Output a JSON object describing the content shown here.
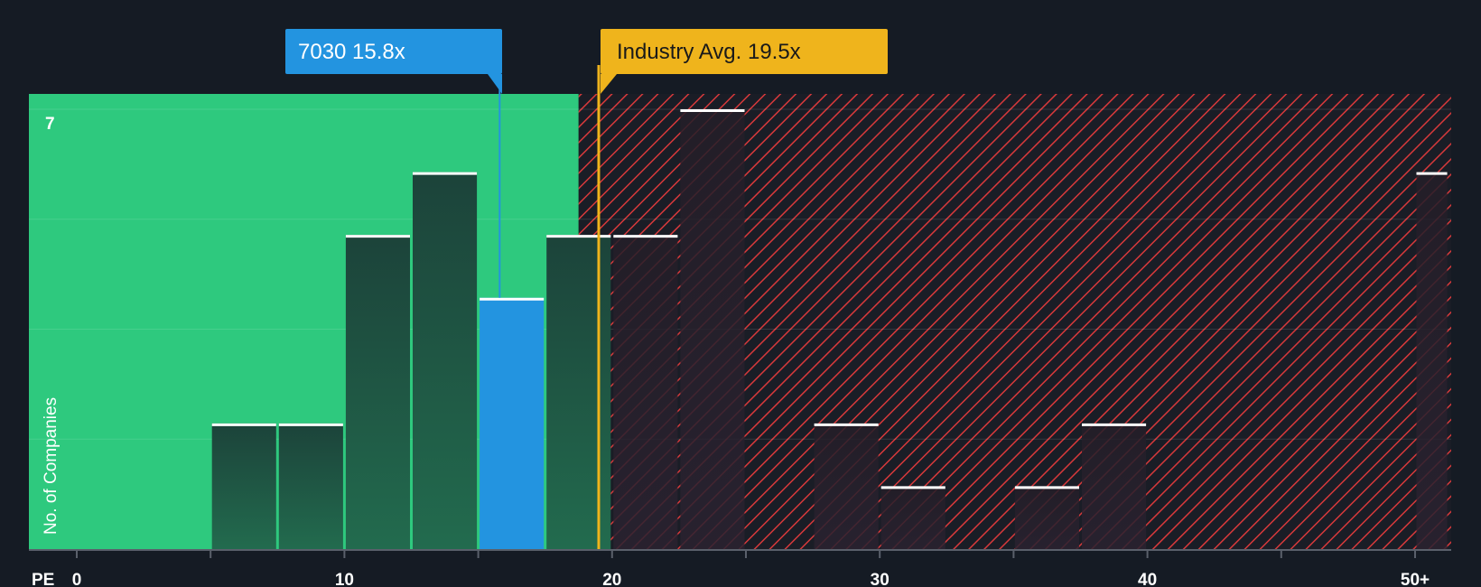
{
  "chart_data": {
    "type": "bar",
    "title": "",
    "xlabel": "PE",
    "ylabel": "No. of Companies",
    "xlim": [
      0,
      51.25
    ],
    "ylim": [
      0,
      7
    ],
    "y_max_label": "7",
    "x_ticks": [
      {
        "value": 0,
        "label": "0"
      },
      {
        "value": 10,
        "label": "10"
      },
      {
        "value": 20,
        "label": "20"
      },
      {
        "value": 30,
        "label": "30"
      },
      {
        "value": 40,
        "label": "40"
      },
      {
        "value": 50,
        "label": "50+"
      }
    ],
    "bins": [
      {
        "x0": 5.0,
        "x1": 7.5,
        "value": 2
      },
      {
        "x0": 7.5,
        "x1": 10.0,
        "value": 2
      },
      {
        "x0": 10.0,
        "x1": 12.5,
        "value": 5
      },
      {
        "x0": 12.5,
        "x1": 15.0,
        "value": 6
      },
      {
        "x0": 15.0,
        "x1": 17.5,
        "value": 4,
        "highlight": true
      },
      {
        "x0": 17.5,
        "x1": 20.0,
        "value": 5
      },
      {
        "x0": 20.0,
        "x1": 22.5,
        "value": 5
      },
      {
        "x0": 22.5,
        "x1": 25.0,
        "value": 7
      },
      {
        "x0": 27.5,
        "x1": 30.0,
        "value": 2
      },
      {
        "x0": 30.0,
        "x1": 32.5,
        "value": 1
      },
      {
        "x0": 35.0,
        "x1": 37.5,
        "value": 1
      },
      {
        "x0": 37.5,
        "x1": 40.0,
        "value": 2
      },
      {
        "x0": 50.0,
        "x1": 51.25,
        "value": 6
      }
    ],
    "fair_region_end": 18.75,
    "company": {
      "label": "7030 15.8x",
      "value": 15.8
    },
    "industry": {
      "label": "Industry Avg. 19.5x",
      "value": 19.5
    },
    "colors": {
      "background": "#151b24",
      "fair": "#2ec97e",
      "bar": "#1e4a3e",
      "highlight": "#2394e0",
      "hatch": "#e03c3c",
      "industry": "#efb41c",
      "bar_top": "#ffffff"
    }
  }
}
